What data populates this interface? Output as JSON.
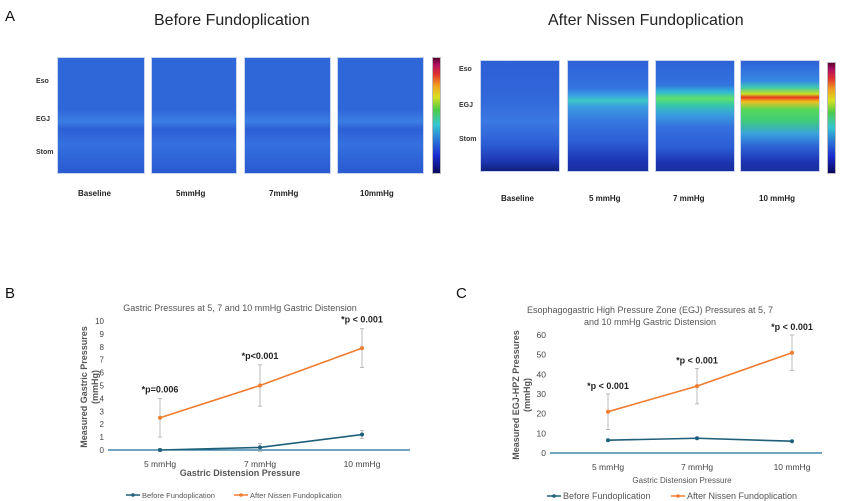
{
  "panels": {
    "a_letter": "A",
    "b_letter": "B",
    "c_letter": "C"
  },
  "heatmaps": {
    "before": {
      "title": "Before Fundoplication",
      "row_labels": [
        "Eso",
        "EGJ",
        "Stom"
      ],
      "columns": [
        "Baseline",
        "5mmHg",
        "7mmHg",
        "10mmHg"
      ]
    },
    "after": {
      "title": "After Nissen Fundoplication",
      "row_labels": [
        "Eso",
        "EGJ",
        "Stom"
      ],
      "columns": [
        "Baseline",
        "5 mmHg",
        "7 mmHg",
        "10 mmHg"
      ]
    }
  },
  "chart_data": [
    {
      "type": "line",
      "title": "Gastric Pressures at 5, 7 and 10 mmHg Gastric Distension",
      "xlabel": "Gastric Distension Pressure",
      "ylabel": "Measured Gastric Pressures (mmHg)",
      "categories": [
        "5 mmHg",
        "7 mmHg",
        "10 mmHg"
      ],
      "ylim": [
        0,
        10
      ],
      "yticks": [
        0,
        1,
        2,
        3,
        4,
        5,
        6,
        7,
        8,
        9,
        10
      ],
      "series": [
        {
          "name": "Before Fundoplication",
          "color": "#1f5f7a",
          "values": [
            0.0,
            0.2,
            1.2
          ],
          "errors": [
            0.1,
            0.3,
            0.3
          ]
        },
        {
          "name": "After Nissen Fundoplication",
          "color": "#f07c30",
          "values": [
            2.5,
            5.0,
            7.9
          ],
          "errors": [
            1.5,
            1.6,
            1.5
          ]
        }
      ],
      "annotations": [
        "*p=0.006",
        "*p<0.001",
        "*p < 0.001"
      ],
      "legend": "bottom"
    },
    {
      "type": "line",
      "title": "Esophagogastric High Pressure Zone (EGJ) Pressures at 5, 7 and 10 mmHg Gastric Distension",
      "xlabel": "Gastric Distension Pressure",
      "ylabel": "Measured EGJ-HPZ Pressures (mmHg)",
      "categories": [
        "5 mmHg",
        "7 mmHg",
        "10 mmHg"
      ],
      "ylim": [
        0,
        60
      ],
      "yticks": [
        0,
        10,
        20,
        30,
        40,
        50,
        60
      ],
      "series": [
        {
          "name": "Before Fundoplication",
          "color": "#1f5f7a",
          "values": [
            6.5,
            7.5,
            6.0
          ],
          "errors": [
            0,
            0,
            0
          ]
        },
        {
          "name": "After Nissen Fundoplication",
          "color": "#f07c30",
          "values": [
            21.0,
            34.0,
            51.0
          ],
          "errors": [
            9,
            9,
            9
          ]
        }
      ],
      "annotations": [
        "*p < 0.001",
        "*p < 0.001",
        "*p < 0.001"
      ],
      "legend": "bottom"
    }
  ]
}
